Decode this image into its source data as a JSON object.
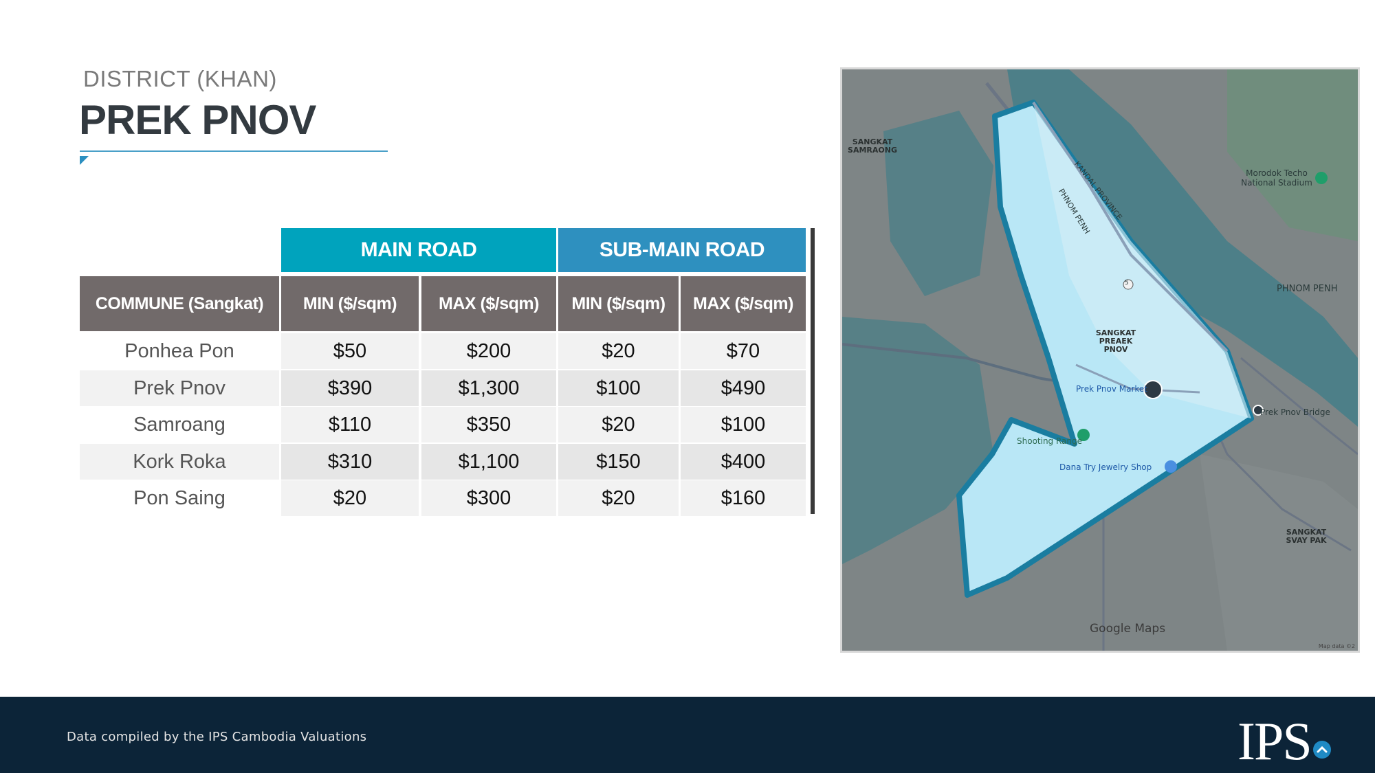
{
  "header": {
    "subtitle": "DISTRICT (KHAN)",
    "title": "PREK PNOV"
  },
  "table": {
    "group_headers": {
      "main_road": "MAIN ROAD",
      "sub_main_road": "SUB-MAIN ROAD"
    },
    "columns": [
      "COMMUNE (Sangkat)",
      "MIN ($/sqm)",
      "MAX ($/sqm)",
      "MIN ($/sqm)",
      "MAX ($/sqm)"
    ],
    "rows": [
      [
        "Ponhea Pon",
        "$50",
        "$200",
        "$20",
        "$70"
      ],
      [
        "Prek Pnov",
        "$390",
        "$1,300",
        "$100",
        "$490"
      ],
      [
        "Samroang",
        "$110",
        "$350",
        "$20",
        "$100"
      ],
      [
        "Kork Roka",
        "$310",
        "$1,100",
        "$150",
        "$400"
      ],
      [
        "Pon Saing",
        "$20",
        "$300",
        "$20",
        "$160"
      ]
    ]
  },
  "map": {
    "labels": {
      "sangkat_samraong": "SANGKAT SAMRAONG",
      "sangkat_preaek_pnov": "SANGKAT PREAEK PNOV",
      "sangkat_svay_pak": "SANGKAT SVAY PAK",
      "phnom_penh": "PHNOM PENH",
      "kandal_province": "KANDAL PROVINCE",
      "phnom_penh_border": "PHNOM PENH",
      "stadium": "Morodok Techo National Stadium",
      "prek_pnov_market": "Prek Pnov Market",
      "prek_pnov_bridge": "Prek Pnov Bridge",
      "shooting_range": "Shooting Range",
      "jewelry_shop": "Dana Try Jewelry Shop",
      "route_number": "5",
      "google_maps": "Google Maps",
      "map_data": "Map data ©2"
    },
    "colors": {
      "water": "#4d7f88",
      "land": "#7f8687",
      "district": "#b8e6f5",
      "border": "#1a7da0"
    }
  },
  "footer": {
    "source_text": "Data compiled by the IPS Cambodia Valuations",
    "logo_text": "IPS"
  }
}
